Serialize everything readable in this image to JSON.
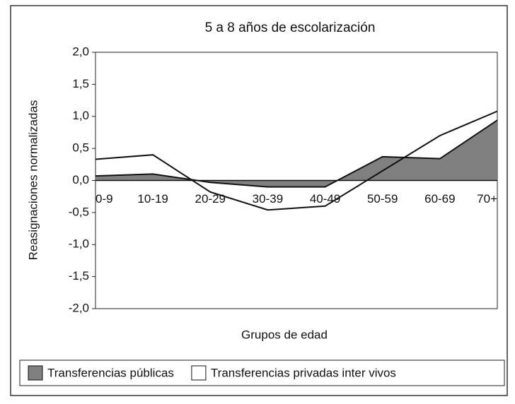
{
  "chart_data": {
    "type": "area",
    "title": "5 a 8 años de escolarización",
    "y_label": "Reasignaciones normalizadas",
    "x_label": "Grupos de edad",
    "categories": [
      "0-9",
      "10-19",
      "20-29",
      "30-39",
      "40-49",
      "50-59",
      "60-69",
      "70+"
    ],
    "series": [
      {
        "name": "Transferencias públicas",
        "color": "#808080",
        "values": [
          0.07,
          0.1,
          -0.03,
          -0.1,
          -0.1,
          0.37,
          0.34,
          0.94
        ]
      },
      {
        "name": "Transferencias privadas inter vivos",
        "color": "#ffffff",
        "values": [
          0.33,
          0.4,
          -0.18,
          -0.46,
          -0.4,
          0.15,
          0.7,
          1.08
        ]
      }
    ],
    "ylim": [
      -2,
      2
    ],
    "yticks": [
      {
        "value": 2,
        "label": "2,0"
      },
      {
        "value": 1.5,
        "label": "1,5"
      },
      {
        "value": 1,
        "label": "1,0"
      },
      {
        "value": 0.5,
        "label": "0,5"
      },
      {
        "value": 0,
        "label": "0,0"
      },
      {
        "value": -0.5,
        "label": "-0,5"
      },
      {
        "value": -1,
        "label": "-1,0"
      },
      {
        "value": -1.5,
        "label": "-1,5"
      },
      {
        "value": -2,
        "label": "-2,0"
      }
    ],
    "legend": "bottom"
  }
}
